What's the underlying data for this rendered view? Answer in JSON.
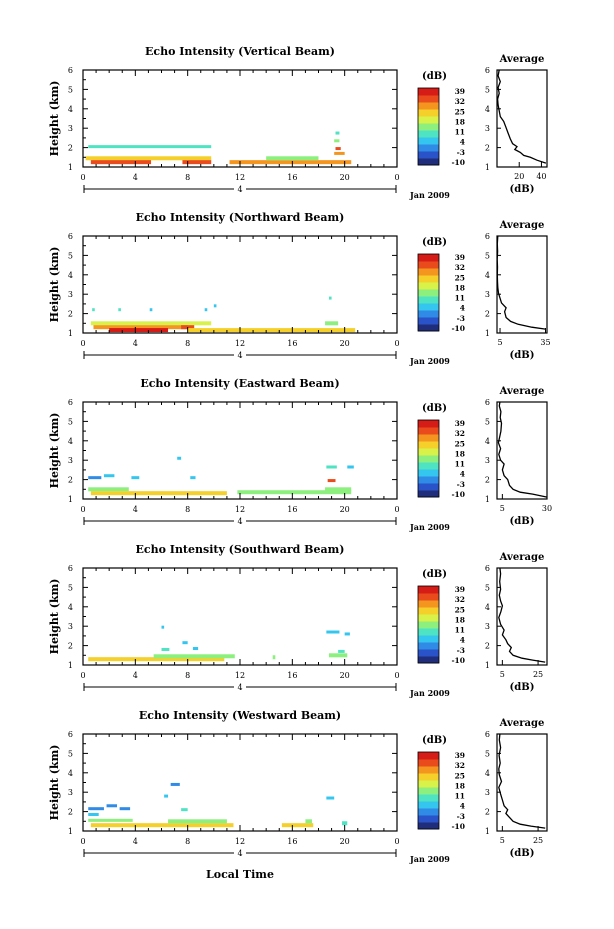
{
  "figure": {
    "time_axis_label": "Local Time",
    "date_label": "Jan 2009",
    "day_label": "4",
    "colorbar_unit": "(dB)",
    "avg_title": "Average",
    "avg_xlabel": "(dB)",
    "height_label": "Height (km)"
  },
  "colors": {
    "scale": [
      "#1f2d7a",
      "#2a52c9",
      "#2f8be6",
      "#35c6ef",
      "#4ee3c2",
      "#8cef7e",
      "#d9f24a",
      "#f5d02a",
      "#f4951f",
      "#ea4b1c",
      "#d61c16"
    ]
  },
  "chart_data": [
    {
      "type": "heatmap",
      "title": "Echo Intensity (Vertical Beam)",
      "xlabel": "Local Time",
      "ylabel": "Height (km)",
      "xlim": [
        0,
        24
      ],
      "ylim": [
        1,
        6
      ],
      "x_ticks": [
        "0",
        "4",
        "8",
        "12",
        "16",
        "20",
        "0"
      ],
      "y_ticks": [
        "1",
        "2",
        "3",
        "4",
        "5",
        "6"
      ],
      "colorbar": {
        "label": "(dB)",
        "ticks": [
          "39",
          "32",
          "25",
          "18",
          "11",
          "4",
          "-3",
          "-10"
        ],
        "range": [
          -10,
          39
        ]
      },
      "echoes": [
        {
          "t0": 0.4,
          "t1": 9.8,
          "h": 2.05,
          "db": 12
        },
        {
          "t0": 0.2,
          "t1": 9.8,
          "h": 1.45,
          "db": 24
        },
        {
          "t0": 0.6,
          "t1": 5.2,
          "h": 1.25,
          "db": 36
        },
        {
          "t0": 7.6,
          "t1": 9.8,
          "h": 1.25,
          "db": 36
        },
        {
          "t0": 11.2,
          "t1": 20.5,
          "h": 1.25,
          "db": 27
        },
        {
          "t0": 14.0,
          "t1": 18.0,
          "h": 1.45,
          "db": 13
        },
        {
          "t0": 19.2,
          "t1": 20.0,
          "h": 1.7,
          "db": 29
        },
        {
          "t0": 19.3,
          "t1": 19.7,
          "h": 1.95,
          "db": 33
        },
        {
          "t0": 19.2,
          "t1": 19.6,
          "h": 2.35,
          "db": 14
        },
        {
          "t0": 19.3,
          "t1": 19.6,
          "h": 2.75,
          "db": 12
        }
      ],
      "average": {
        "xlim": [
          0,
          45
        ],
        "x_ticks": [
          "20",
          "40"
        ],
        "x_tick_values": [
          20,
          40
        ],
        "ylim": [
          1,
          6
        ],
        "y_ticks": [
          "1",
          "2",
          "3",
          "4",
          "5",
          "6"
        ],
        "profile": [
          [
            44,
            1.2
          ],
          [
            36,
            1.35
          ],
          [
            30,
            1.5
          ],
          [
            24,
            1.6
          ],
          [
            21,
            1.75
          ],
          [
            16,
            1.9
          ],
          [
            18,
            2.05
          ],
          [
            14,
            2.2
          ],
          [
            12,
            2.45
          ],
          [
            10,
            2.75
          ],
          [
            8,
            3.05
          ],
          [
            6,
            3.35
          ],
          [
            3,
            3.6
          ],
          [
            2,
            3.9
          ],
          [
            1,
            4.2
          ],
          [
            0.5,
            4.5
          ],
          [
            2,
            4.8
          ],
          [
            1,
            5.1
          ],
          [
            3,
            5.4
          ],
          [
            1,
            5.7
          ],
          [
            2,
            6.0
          ]
        ]
      }
    },
    {
      "type": "heatmap",
      "title": "Echo Intensity (Northward Beam)",
      "xlabel": "Local Time",
      "ylabel": "Height (km)",
      "xlim": [
        0,
        24
      ],
      "ylim": [
        1,
        6
      ],
      "x_ticks": [
        "0",
        "4",
        "8",
        "12",
        "16",
        "20",
        "0"
      ],
      "y_ticks": [
        "1",
        "2",
        "3",
        "4",
        "5",
        "6"
      ],
      "colorbar": {
        "label": "(dB)",
        "ticks": [
          "39",
          "32",
          "25",
          "18",
          "11",
          "4",
          "-3",
          "-10"
        ],
        "range": [
          -10,
          39
        ]
      },
      "echoes": [
        {
          "t0": 0.7,
          "t1": 0.9,
          "h": 2.2,
          "db": 8
        },
        {
          "t0": 2.7,
          "t1": 2.9,
          "h": 2.2,
          "db": 8
        },
        {
          "t0": 5.1,
          "t1": 5.3,
          "h": 2.2,
          "db": 5
        },
        {
          "t0": 9.3,
          "t1": 9.5,
          "h": 2.2,
          "db": 5
        },
        {
          "t0": 10.0,
          "t1": 10.2,
          "h": 2.4,
          "db": 5
        },
        {
          "t0": 0.6,
          "t1": 9.8,
          "h": 1.5,
          "db": 20
        },
        {
          "t0": 0.8,
          "t1": 8.0,
          "h": 1.3,
          "db": 31
        },
        {
          "t0": 2.0,
          "t1": 6.5,
          "h": 1.15,
          "db": 37
        },
        {
          "t0": 7.5,
          "t1": 8.5,
          "h": 1.3,
          "db": 36
        },
        {
          "t0": 8.0,
          "t1": 20.8,
          "h": 1.15,
          "db": 24
        },
        {
          "t0": 18.5,
          "t1": 19.5,
          "h": 1.5,
          "db": 14
        },
        {
          "t0": 18.8,
          "t1": 19.0,
          "h": 2.8,
          "db": 11
        }
      ],
      "average": {
        "xlim": [
          3,
          36
        ],
        "x_ticks": [
          "5",
          "35"
        ],
        "x_tick_values": [
          5,
          35
        ],
        "ylim": [
          1,
          6
        ],
        "y_ticks": [
          "1",
          "2",
          "3",
          "4",
          "5",
          "6"
        ],
        "profile": [
          [
            35,
            1.2
          ],
          [
            26,
            1.3
          ],
          [
            17,
            1.45
          ],
          [
            12,
            1.6
          ],
          [
            9,
            1.8
          ],
          [
            8,
            2.1
          ],
          [
            9,
            2.3
          ],
          [
            6,
            2.55
          ],
          [
            5,
            2.8
          ],
          [
            4,
            3.05
          ],
          [
            3.5,
            3.35
          ],
          [
            3.3,
            3.65
          ],
          [
            3.2,
            4.0
          ],
          [
            3.3,
            4.4
          ],
          [
            3.1,
            4.8
          ],
          [
            3.4,
            5.2
          ],
          [
            3.2,
            5.6
          ],
          [
            3.5,
            6.0
          ]
        ]
      }
    },
    {
      "type": "heatmap",
      "title": "Echo Intensity (Eastward Beam)",
      "xlabel": "Local Time",
      "ylabel": "Height (km)",
      "xlim": [
        0,
        24
      ],
      "ylim": [
        1,
        6
      ],
      "x_ticks": [
        "0",
        "4",
        "8",
        "12",
        "16",
        "20",
        "0"
      ],
      "y_ticks": [
        "1",
        "2",
        "3",
        "4",
        "5",
        "6"
      ],
      "colorbar": {
        "label": "(dB)",
        "ticks": [
          "39",
          "32",
          "25",
          "18",
          "11",
          "4",
          "-3",
          "-10"
        ],
        "range": [
          -10,
          39
        ]
      },
      "echoes": [
        {
          "t0": 0.4,
          "t1": 1.4,
          "h": 2.1,
          "db": 2
        },
        {
          "t0": 1.6,
          "t1": 2.4,
          "h": 2.2,
          "db": 3
        },
        {
          "t0": 3.7,
          "t1": 4.3,
          "h": 2.1,
          "db": 7
        },
        {
          "t0": 7.2,
          "t1": 7.5,
          "h": 3.1,
          "db": 5
        },
        {
          "t0": 8.2,
          "t1": 8.6,
          "h": 2.1,
          "db": 5
        },
        {
          "t0": 0.4,
          "t1": 3.5,
          "h": 1.5,
          "db": 13
        },
        {
          "t0": 0.6,
          "t1": 11.0,
          "h": 1.3,
          "db": 26
        },
        {
          "t0": 11.8,
          "t1": 20.5,
          "h": 1.35,
          "db": 15
        },
        {
          "t0": 18.6,
          "t1": 19.4,
          "h": 2.65,
          "db": 11
        },
        {
          "t0": 20.2,
          "t1": 20.7,
          "h": 2.65,
          "db": 6
        },
        {
          "t0": 18.7,
          "t1": 19.3,
          "h": 1.95,
          "db": 33
        },
        {
          "t0": 18.5,
          "t1": 20.5,
          "h": 1.5,
          "db": 16
        }
      ],
      "average": {
        "xlim": [
          2,
          30
        ],
        "x_ticks": [
          "5",
          "30"
        ],
        "x_tick_values": [
          5,
          30
        ],
        "ylim": [
          1,
          6
        ],
        "y_ticks": [
          "1",
          "2",
          "3",
          "4",
          "5",
          "6"
        ],
        "profile": [
          [
            30,
            1.1
          ],
          [
            22,
            1.25
          ],
          [
            15,
            1.35
          ],
          [
            11,
            1.5
          ],
          [
            9,
            1.7
          ],
          [
            8,
            2.0
          ],
          [
            6,
            2.2
          ],
          [
            5,
            2.5
          ],
          [
            6,
            2.8
          ],
          [
            4,
            3.0
          ],
          [
            3,
            3.3
          ],
          [
            4,
            3.6
          ],
          [
            2.8,
            3.9
          ],
          [
            3.5,
            4.2
          ],
          [
            4.2,
            4.5
          ],
          [
            4.5,
            4.9
          ],
          [
            3.8,
            5.2
          ],
          [
            4.2,
            5.5
          ],
          [
            3.3,
            5.8
          ],
          [
            3.6,
            6.0
          ]
        ]
      }
    },
    {
      "type": "heatmap",
      "title": "Echo Intensity (Southward Beam)",
      "xlabel": "Local Time",
      "ylabel": "Height (km)",
      "xlim": [
        0,
        24
      ],
      "ylim": [
        1,
        6
      ],
      "x_ticks": [
        "0",
        "4",
        "8",
        "12",
        "16",
        "20",
        "0"
      ],
      "y_ticks": [
        "1",
        "2",
        "3",
        "4",
        "5",
        "6"
      ],
      "colorbar": {
        "label": "(dB)",
        "ticks": [
          "39",
          "32",
          "25",
          "18",
          "11",
          "4",
          "-3",
          "-10"
        ],
        "range": [
          -10,
          39
        ]
      },
      "echoes": [
        {
          "t0": 0.4,
          "t1": 10.8,
          "h": 1.3,
          "db": 23
        },
        {
          "t0": 5.4,
          "t1": 11.6,
          "h": 1.45,
          "db": 14
        },
        {
          "t0": 6.0,
          "t1": 6.6,
          "h": 1.8,
          "db": 11
        },
        {
          "t0": 6.0,
          "t1": 6.2,
          "h": 2.95,
          "db": 5
        },
        {
          "t0": 7.6,
          "t1": 8.0,
          "h": 2.15,
          "db": 5
        },
        {
          "t0": 8.4,
          "t1": 8.8,
          "h": 1.85,
          "db": 7
        },
        {
          "t0": 14.5,
          "t1": 14.7,
          "h": 1.4,
          "db": 13
        },
        {
          "t0": 18.6,
          "t1": 19.6,
          "h": 2.7,
          "db": 7
        },
        {
          "t0": 20.0,
          "t1": 20.4,
          "h": 2.6,
          "db": 6
        },
        {
          "t0": 18.8,
          "t1": 20.2,
          "h": 1.5,
          "db": 13
        },
        {
          "t0": 19.5,
          "t1": 20.0,
          "h": 1.7,
          "db": 10
        }
      ],
      "average": {
        "xlim": [
          2,
          30
        ],
        "x_ticks": [
          "5",
          "25"
        ],
        "x_tick_values": [
          5,
          25
        ],
        "ylim": [
          1,
          6
        ],
        "y_ticks": [
          "1",
          "2",
          "3",
          "4",
          "5",
          "6"
        ],
        "profile": [
          [
            29,
            1.15
          ],
          [
            22,
            1.25
          ],
          [
            16,
            1.35
          ],
          [
            11,
            1.5
          ],
          [
            9,
            1.7
          ],
          [
            10,
            1.9
          ],
          [
            8,
            2.1
          ],
          [
            7,
            2.3
          ],
          [
            5,
            2.55
          ],
          [
            6,
            2.8
          ],
          [
            4,
            3.1
          ],
          [
            3,
            3.45
          ],
          [
            4.2,
            3.75
          ],
          [
            5,
            4.05
          ],
          [
            4,
            4.3
          ],
          [
            3.3,
            4.6
          ],
          [
            4,
            4.9
          ],
          [
            3.5,
            5.3
          ],
          [
            4,
            5.7
          ],
          [
            3.6,
            6.0
          ]
        ]
      }
    },
    {
      "type": "heatmap",
      "title": "Echo Intensity (Westward Beam)",
      "xlabel": "Local Time",
      "ylabel": "Height (km)",
      "xlim": [
        0,
        24
      ],
      "ylim": [
        1,
        6
      ],
      "x_ticks": [
        "0",
        "4",
        "8",
        "12",
        "16",
        "20",
        "0"
      ],
      "y_ticks": [
        "1",
        "2",
        "3",
        "4",
        "5",
        "6"
      ],
      "colorbar": {
        "label": "(dB)",
        "ticks": [
          "39",
          "32",
          "25",
          "18",
          "11",
          "4",
          "-3",
          "-10"
        ],
        "range": [
          -10,
          39
        ]
      },
      "echoes": [
        {
          "t0": 0.4,
          "t1": 1.6,
          "h": 2.15,
          "db": 2
        },
        {
          "t0": 1.8,
          "t1": 2.6,
          "h": 2.3,
          "db": 0
        },
        {
          "t0": 2.8,
          "t1": 3.6,
          "h": 2.15,
          "db": 1
        },
        {
          "t0": 0.4,
          "t1": 1.2,
          "h": 1.85,
          "db": 5
        },
        {
          "t0": 6.7,
          "t1": 7.4,
          "h": 3.4,
          "db": 0
        },
        {
          "t0": 6.2,
          "t1": 6.5,
          "h": 2.8,
          "db": 6
        },
        {
          "t0": 7.5,
          "t1": 8.0,
          "h": 2.1,
          "db": 8
        },
        {
          "t0": 0.4,
          "t1": 3.8,
          "h": 1.55,
          "db": 13
        },
        {
          "t0": 0.6,
          "t1": 11.5,
          "h": 1.3,
          "db": 24
        },
        {
          "t0": 6.5,
          "t1": 11.0,
          "h": 1.5,
          "db": 14
        },
        {
          "t0": 15.2,
          "t1": 17.6,
          "h": 1.3,
          "db": 24
        },
        {
          "t0": 17.0,
          "t1": 17.5,
          "h": 1.5,
          "db": 14
        },
        {
          "t0": 18.6,
          "t1": 19.2,
          "h": 2.7,
          "db": 4
        },
        {
          "t0": 19.8,
          "t1": 20.2,
          "h": 1.4,
          "db": 12
        }
      ],
      "average": {
        "xlim": [
          2,
          30
        ],
        "x_ticks": [
          "5",
          "25"
        ],
        "x_tick_values": [
          5,
          25
        ],
        "ylim": [
          1,
          6
        ],
        "y_ticks": [
          "1",
          "2",
          "3",
          "4",
          "5",
          "6"
        ],
        "profile": [
          [
            29,
            1.15
          ],
          [
            21,
            1.25
          ],
          [
            15,
            1.35
          ],
          [
            11,
            1.5
          ],
          [
            9,
            1.7
          ],
          [
            7,
            1.9
          ],
          [
            8,
            2.1
          ],
          [
            6,
            2.3
          ],
          [
            5,
            2.6
          ],
          [
            4,
            2.9
          ],
          [
            3,
            3.25
          ],
          [
            4.5,
            3.55
          ],
          [
            3.3,
            3.9
          ],
          [
            3,
            4.2
          ],
          [
            3.8,
            4.5
          ],
          [
            3.2,
            4.9
          ],
          [
            4,
            5.3
          ],
          [
            3.3,
            5.7
          ],
          [
            3.6,
            6.0
          ]
        ]
      }
    }
  ]
}
